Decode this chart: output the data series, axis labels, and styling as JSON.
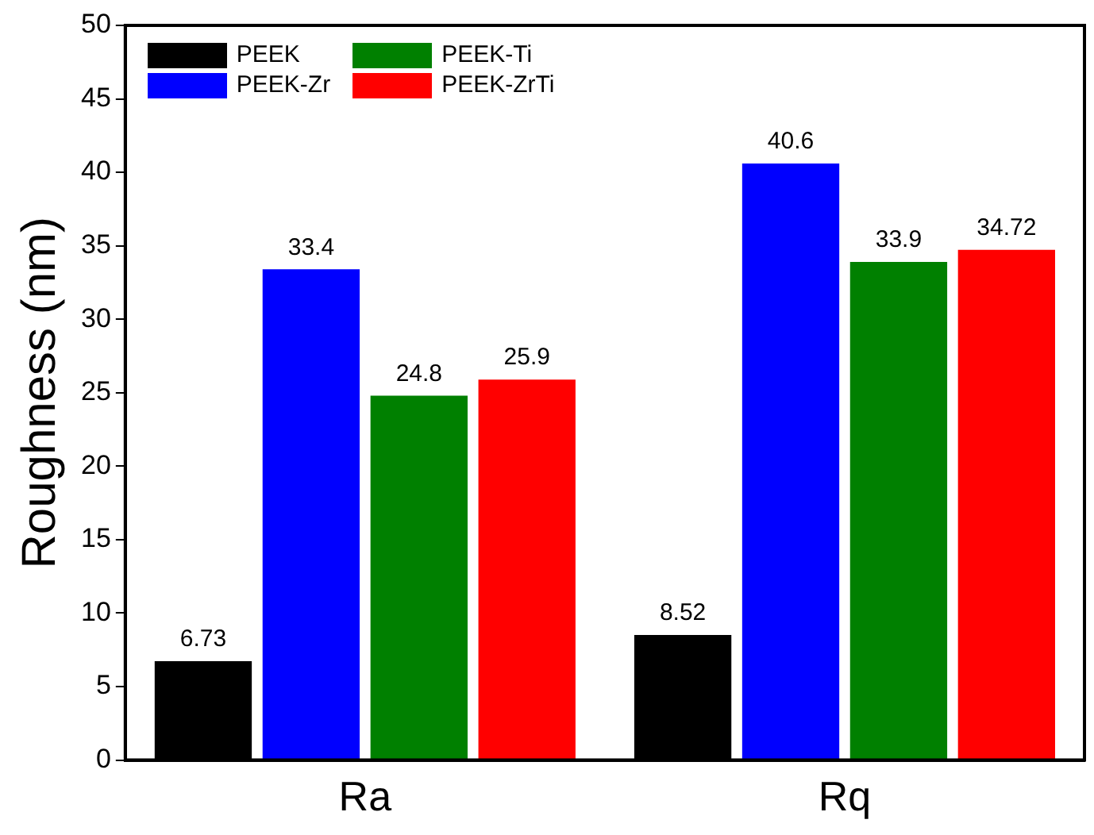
{
  "chart_data": {
    "type": "bar",
    "ylabel": "Roughness (nm)",
    "categories": [
      "Ra",
      "Rq"
    ],
    "series": [
      {
        "name": "PEEK",
        "color": "#000000",
        "values": [
          6.73,
          8.52
        ]
      },
      {
        "name": "PEEK-Zr",
        "color": "#0000ff",
        "values": [
          33.4,
          40.6
        ],
        "value_labels": [
          "33.4",
          "40.6"
        ]
      },
      {
        "name": "PEEK-Ti",
        "color": "#008000",
        "values": [
          24.8,
          33.9
        ],
        "value_labels": [
          "24.8",
          "33.9"
        ]
      },
      {
        "name": "PEEK-ZrTi",
        "color": "#ff0000",
        "values": [
          25.9,
          34.72
        ],
        "value_labels": [
          "25.9",
          "34.72"
        ]
      }
    ],
    "ylim": [
      0,
      50
    ],
    "yticks": [
      0,
      5,
      10,
      15,
      20,
      25,
      30,
      35,
      40,
      45,
      50
    ],
    "grid": false,
    "legend": "top left",
    "data_labels": true
  }
}
